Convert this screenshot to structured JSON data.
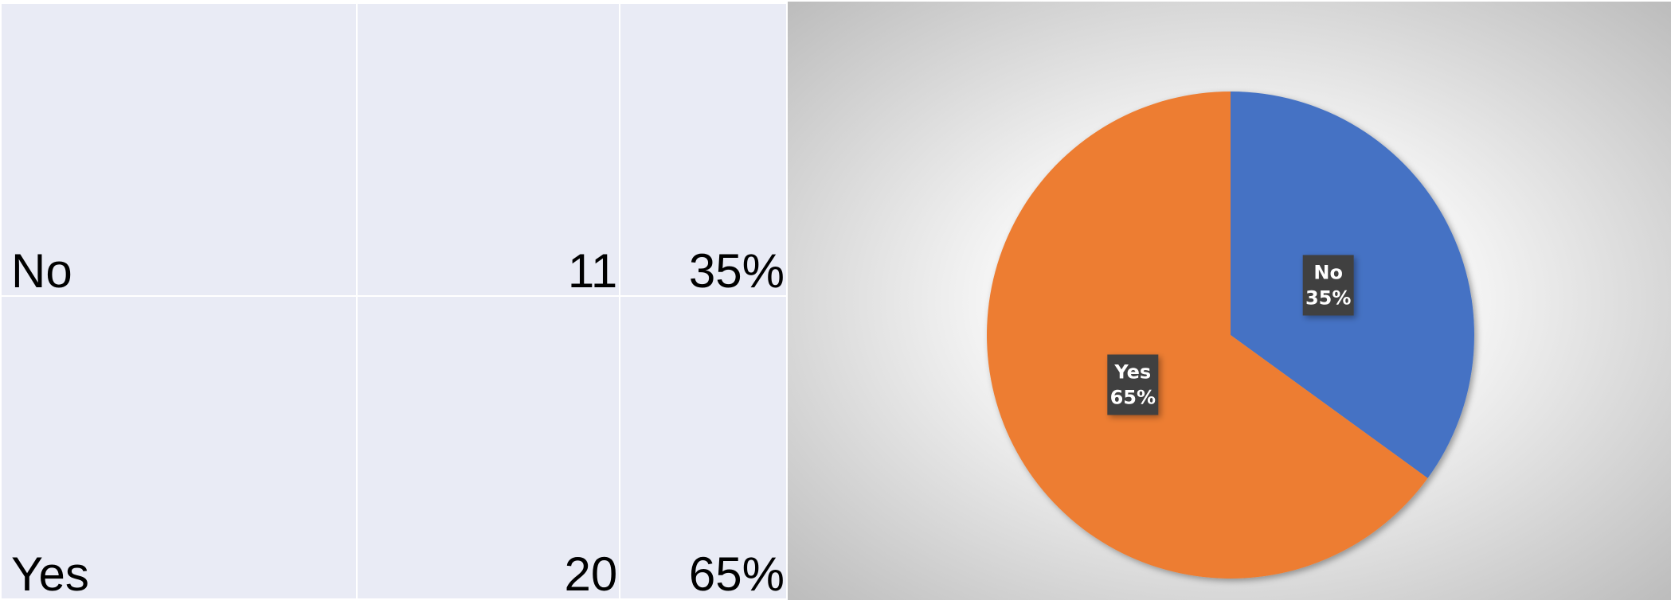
{
  "table": {
    "rows": [
      [
        "No",
        "11",
        "35%"
      ],
      [
        "Yes",
        "20",
        "65%"
      ]
    ]
  },
  "chart_data": {
    "type": "pie",
    "categories": [
      "No",
      "Yes"
    ],
    "values": [
      35,
      65
    ],
    "value_labels": [
      "35%",
      "65%"
    ],
    "colors": [
      "#4472c4",
      "#ed7d31"
    ]
  }
}
